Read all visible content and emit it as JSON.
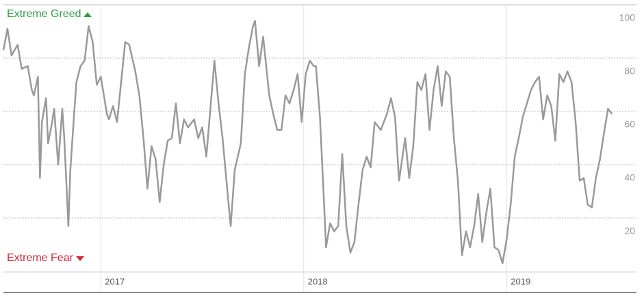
{
  "chart_data": {
    "type": "line",
    "annotations": {
      "top": "Extreme Greed",
      "bottom": "Extreme Fear"
    },
    "x": [
      2016.52,
      2016.54,
      2016.56,
      2016.59,
      2016.61,
      2016.64,
      2016.66,
      2016.67,
      2016.69,
      2016.7,
      2016.71,
      2016.73,
      2016.74,
      2016.76,
      2016.77,
      2016.79,
      2016.81,
      2016.82,
      2016.84,
      2016.85,
      2016.87,
      2016.88,
      2016.9,
      2016.92,
      2016.94,
      2016.96,
      2016.98,
      2017.0,
      2017.03,
      2017.04,
      2017.06,
      2017.08,
      2017.1,
      2017.12,
      2017.14,
      2017.17,
      2017.19,
      2017.21,
      2017.23,
      2017.25,
      2017.27,
      2017.29,
      2017.31,
      2017.33,
      2017.35,
      2017.37,
      2017.39,
      2017.41,
      2017.43,
      2017.46,
      2017.48,
      2017.5,
      2017.52,
      2017.54,
      2017.56,
      2017.58,
      2017.6,
      2017.63,
      2017.64,
      2017.66,
      2017.69,
      2017.71,
      2017.73,
      2017.75,
      2017.76,
      2017.78,
      2017.8,
      2017.83,
      2017.85,
      2017.87,
      2017.89,
      2017.91,
      2017.93,
      2017.95,
      2017.97,
      2017.99,
      2018.01,
      2018.03,
      2018.05,
      2018.06,
      2018.08,
      2018.1,
      2018.11,
      2018.13,
      2018.15,
      2018.17,
      2018.19,
      2018.21,
      2018.23,
      2018.25,
      2018.27,
      2018.29,
      2018.31,
      2018.33,
      2018.35,
      2018.38,
      2018.41,
      2018.43,
      2018.45,
      2018.47,
      2018.5,
      2018.52,
      2018.54,
      2018.56,
      2018.58,
      2018.6,
      2018.62,
      2018.64,
      2018.66,
      2018.68,
      2018.7,
      2018.72,
      2018.74,
      2018.76,
      2018.78,
      2018.8,
      2018.82,
      2018.84,
      2018.86,
      2018.88,
      2018.9,
      2018.92,
      2018.94,
      2018.96,
      2018.98,
      2019.0,
      2019.02,
      2019.04,
      2019.06,
      2019.08,
      2019.1,
      2019.12,
      2019.14,
      2019.16,
      2019.18,
      2019.2,
      2019.22,
      2019.24,
      2019.26,
      2019.28,
      2019.3,
      2019.32,
      2019.34,
      2019.36,
      2019.38,
      2019.4,
      2019.42,
      2019.44,
      2019.46,
      2019.48,
      2019.5,
      2019.52
    ],
    "series": [
      {
        "color": "#999999",
        "values": [
          83,
          91,
          81,
          85,
          76,
          77,
          68,
          66,
          73,
          35,
          56,
          65,
          48,
          56,
          61,
          40,
          61,
          50,
          17,
          38,
          61,
          71,
          77,
          79,
          92,
          86,
          70,
          73,
          59,
          57,
          62,
          56,
          71,
          86,
          85,
          75,
          66,
          50,
          31,
          47,
          42,
          26,
          40,
          49,
          50,
          63,
          48,
          57,
          54,
          57,
          50,
          54,
          43,
          61,
          79,
          63,
          50,
          25,
          17,
          38,
          48,
          74,
          84,
          92,
          94,
          77,
          88,
          66,
          59,
          53,
          53,
          66,
          63,
          68,
          74,
          56,
          74,
          79,
          77,
          77,
          58,
          26,
          9,
          18,
          15,
          17,
          44,
          17,
          7,
          11,
          25,
          38,
          43,
          39,
          56,
          53,
          59,
          65,
          58,
          34,
          50,
          35,
          47,
          71,
          68,
          74,
          53,
          68,
          77,
          62,
          75,
          73,
          50,
          34,
          6,
          15,
          9,
          17,
          29,
          11,
          22,
          31,
          9,
          8,
          3,
          12,
          25,
          43,
          50,
          58,
          63,
          68,
          71,
          73,
          57,
          66,
          62,
          49,
          74,
          71,
          75,
          71,
          56,
          34,
          35,
          25,
          24,
          35,
          42,
          52,
          61,
          59
        ]
      }
    ],
    "xlim": [
      2016.52,
      2019.64
    ],
    "xticks": [
      2017,
      2018,
      2019
    ],
    "ylim": [
      0,
      100
    ],
    "yticks": [
      20,
      40,
      60,
      80,
      100
    ],
    "grid": true
  }
}
